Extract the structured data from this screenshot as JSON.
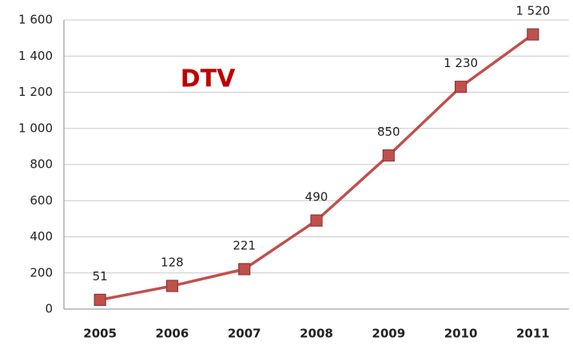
{
  "chart_data": {
    "type": "line",
    "title": "DTV",
    "categories": [
      "2005",
      "2006",
      "2007",
      "2008",
      "2009",
      "2010",
      "2011"
    ],
    "values": [
      51,
      128,
      221,
      490,
      850,
      1230,
      1520
    ],
    "value_labels": [
      "51",
      "128",
      "221",
      "490",
      "850",
      "1 230",
      "1 520"
    ],
    "color": "#c0504d",
    "ylim": [
      0,
      1600
    ],
    "yticks": [
      0,
      200,
      400,
      600,
      800,
      {
        "value": 1000,
        "label": "1 000"
      },
      {
        "value": 1200,
        "label": "1 200"
      },
      {
        "value": 1400,
        "label": "1 400"
      },
      {
        "value": 1600,
        "label": "1 600"
      }
    ],
    "grid": true
  }
}
